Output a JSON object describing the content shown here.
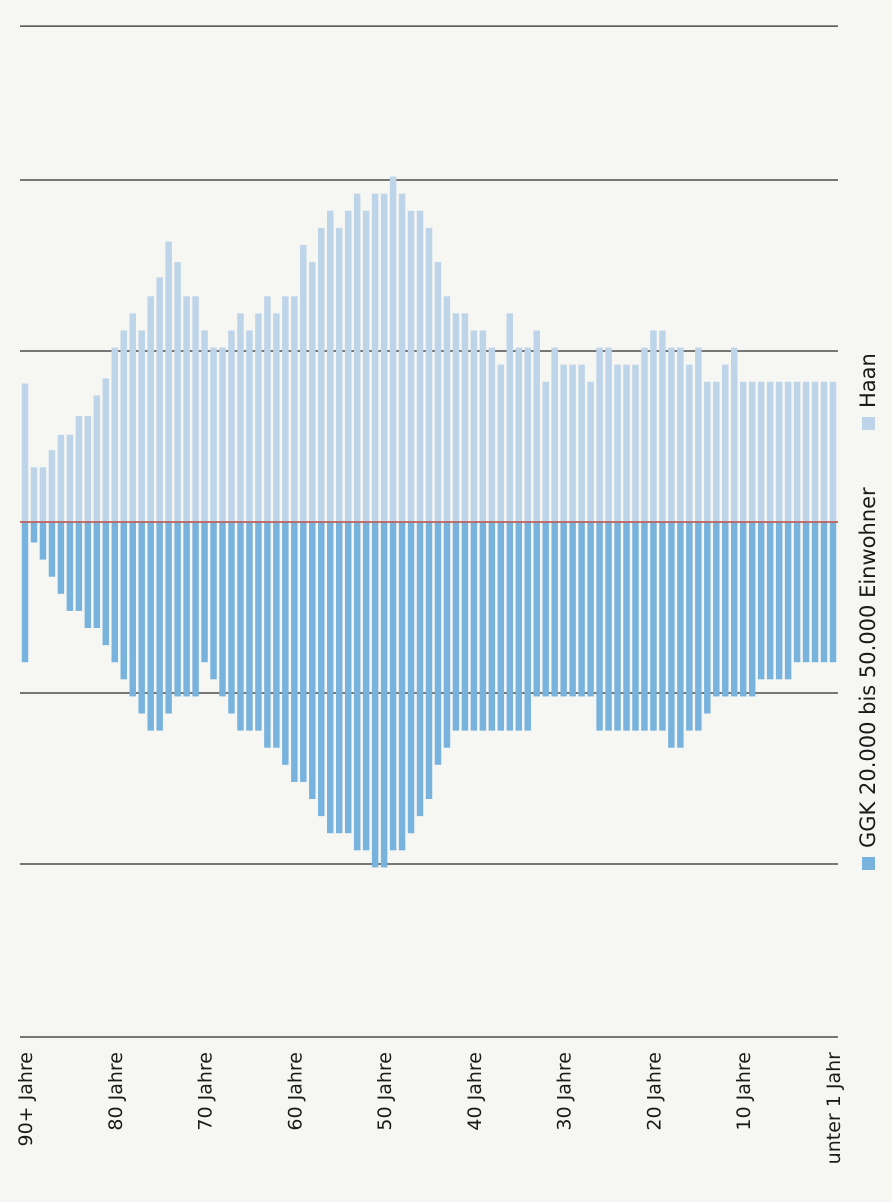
{
  "chart_data": {
    "type": "bar",
    "orientation": "horizontal, rotated page",
    "ages": [
      "90+",
      "89",
      "88",
      "87",
      "86",
      "85",
      "84",
      "83",
      "82",
      "81",
      "80",
      "79",
      "78",
      "77",
      "76",
      "75",
      "74",
      "73",
      "72",
      "71",
      "70",
      "69",
      "68",
      "67",
      "66",
      "65",
      "64",
      "63",
      "62",
      "61",
      "60",
      "59",
      "58",
      "57",
      "56",
      "55",
      "54",
      "53",
      "52",
      "51",
      "50",
      "49",
      "48",
      "47",
      "46",
      "45",
      "44",
      "43",
      "42",
      "41",
      "40",
      "39",
      "38",
      "37",
      "36",
      "35",
      "34",
      "33",
      "32",
      "31",
      "30",
      "29",
      "28",
      "27",
      "26",
      "25",
      "24",
      "23",
      "22",
      "21",
      "20",
      "19",
      "18",
      "17",
      "16",
      "15",
      "14",
      "13",
      "12",
      "11",
      "10",
      "9",
      "8",
      "7",
      "6",
      "5",
      "4",
      "3",
      "2",
      "1",
      "0"
    ],
    "tick_labels": [
      "90+ Jahre",
      "80 Jahre",
      "70 Jahre",
      "60 Jahre",
      "50 Jahre",
      "40 Jahre",
      "30 Jahre",
      "20 Jahre",
      "10 Jahre",
      "unter 1 Jahr"
    ],
    "series": [
      {
        "name": "Haan",
        "color": "#bdd4e9",
        "values": [
          0.81,
          0.32,
          0.32,
          0.42,
          0.51,
          0.51,
          0.62,
          0.62,
          0.74,
          0.84,
          1.02,
          1.12,
          1.22,
          1.12,
          1.32,
          1.43,
          1.64,
          1.52,
          1.32,
          1.32,
          1.12,
          1.02,
          1.02,
          1.12,
          1.22,
          1.12,
          1.22,
          1.32,
          1.22,
          1.32,
          1.32,
          1.62,
          1.52,
          1.72,
          1.82,
          1.72,
          1.82,
          1.92,
          1.82,
          1.92,
          1.92,
          2.02,
          1.92,
          1.82,
          1.82,
          1.72,
          1.52,
          1.32,
          1.22,
          1.22,
          1.12,
          1.12,
          1.02,
          0.92,
          1.22,
          1.02,
          1.02,
          1.12,
          0.82,
          1.02,
          0.92,
          0.92,
          0.92,
          0.82,
          1.02,
          1.02,
          0.92,
          0.92,
          0.92,
          1.02,
          1.12,
          1.12,
          1.02,
          1.02,
          0.92,
          1.02,
          0.82,
          0.82,
          0.92,
          1.02,
          0.82,
          0.82,
          0.82,
          0.82,
          0.82,
          0.82,
          0.82,
          0.82,
          0.82,
          0.82,
          0.82
        ]
      },
      {
        "name": "GGK 20.000 bis 50.000 Einwohner",
        "color": "#78b3de",
        "values": [
          0.82,
          0.12,
          0.22,
          0.32,
          0.42,
          0.52,
          0.52,
          0.62,
          0.62,
          0.72,
          0.82,
          0.92,
          1.02,
          1.12,
          1.22,
          1.22,
          1.12,
          1.02,
          1.02,
          1.02,
          0.82,
          0.92,
          1.02,
          1.12,
          1.22,
          1.22,
          1.22,
          1.32,
          1.32,
          1.42,
          1.52,
          1.52,
          1.62,
          1.72,
          1.82,
          1.82,
          1.82,
          1.92,
          1.92,
          2.02,
          2.02,
          1.92,
          1.92,
          1.82,
          1.72,
          1.62,
          1.42,
          1.32,
          1.22,
          1.22,
          1.22,
          1.22,
          1.22,
          1.22,
          1.22,
          1.22,
          1.22,
          1.02,
          1.02,
          1.02,
          1.02,
          1.02,
          1.02,
          1.02,
          1.22,
          1.22,
          1.22,
          1.22,
          1.22,
          1.22,
          1.22,
          1.22,
          1.32,
          1.32,
          1.22,
          1.22,
          1.12,
          1.02,
          1.02,
          1.02,
          1.02,
          1.02,
          0.92,
          0.92,
          0.92,
          0.92,
          0.82,
          0.82,
          0.82,
          0.82,
          0.82
        ]
      }
    ],
    "xlim": [
      -2.2,
      2.1
    ],
    "grid": true,
    "legend": {
      "placement": "bottom",
      "entries": [
        "GGK 20.000 bis 50.000 Einwohner",
        "Haan"
      ]
    }
  }
}
